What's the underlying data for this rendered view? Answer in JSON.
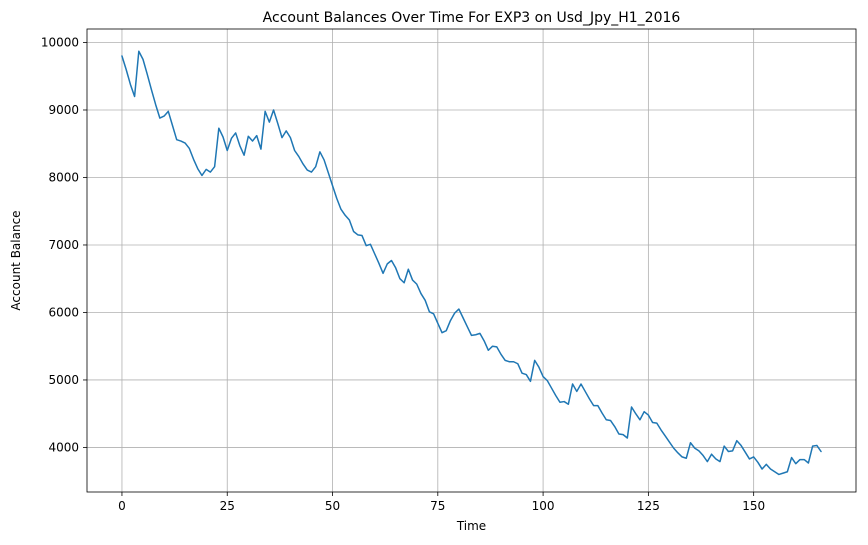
{
  "chart_data": {
    "type": "line",
    "title": "Account Balances Over Time For EXP3 on Usd_Jpy_H1_2016",
    "xlabel": "Time",
    "ylabel": "Account Balance",
    "xlim": [
      -8.3,
      174.3
    ],
    "ylim": [
      3340,
      10200
    ],
    "xticks": [
      0,
      25,
      50,
      75,
      100,
      125,
      150
    ],
    "yticks": [
      4000,
      5000,
      6000,
      7000,
      8000,
      9000,
      10000
    ],
    "grid": true,
    "series": [
      {
        "color": "#1f77b4",
        "x": [
          0,
          1,
          2,
          3,
          4,
          5,
          6,
          7,
          8,
          9,
          10,
          11,
          12,
          13,
          14,
          15,
          16,
          17,
          18,
          19,
          20,
          21,
          22,
          23,
          24,
          25,
          26,
          27,
          28,
          29,
          30,
          31,
          32,
          33,
          34,
          35,
          36,
          37,
          38,
          39,
          40,
          41,
          42,
          43,
          44,
          45,
          46,
          47,
          48,
          49,
          50,
          51,
          52,
          53,
          54,
          55,
          56,
          57,
          58,
          59,
          60,
          61,
          62,
          63,
          64,
          65,
          66,
          67,
          68,
          69,
          70,
          71,
          72,
          73,
          74,
          75,
          76,
          77,
          78,
          79,
          80,
          81,
          82,
          83,
          84,
          85,
          86,
          87,
          88,
          89,
          90,
          91,
          92,
          93,
          94,
          95,
          96,
          97,
          98,
          99,
          100,
          101,
          102,
          103,
          104,
          105,
          106,
          107,
          108,
          109,
          110,
          111,
          112,
          113,
          114,
          115,
          116,
          117,
          118,
          119,
          120,
          121,
          122,
          123,
          124,
          125,
          126,
          127,
          128,
          129,
          130,
          131,
          132,
          133,
          134,
          135,
          136,
          137,
          138,
          139,
          140,
          141,
          142,
          143,
          144,
          145,
          146,
          147,
          148,
          149,
          150,
          151,
          152,
          153,
          154,
          155,
          156,
          157,
          158,
          159,
          160,
          161,
          162,
          163,
          164,
          165,
          166
        ],
        "y": [
          9800,
          9600,
          9380,
          9200,
          9870,
          9750,
          9530,
          9300,
          9080,
          8880,
          8910,
          8980,
          8770,
          8560,
          8540,
          8510,
          8430,
          8270,
          8130,
          8030,
          8120,
          8080,
          8160,
          8730,
          8600,
          8400,
          8580,
          8660,
          8470,
          8330,
          8610,
          8540,
          8620,
          8420,
          8980,
          8820,
          9000,
          8800,
          8590,
          8690,
          8590,
          8400,
          8310,
          8200,
          8110,
          8080,
          8160,
          8380,
          8260,
          8070,
          7880,
          7690,
          7530,
          7440,
          7370,
          7200,
          7150,
          7140,
          6990,
          7010,
          6870,
          6730,
          6580,
          6720,
          6770,
          6660,
          6500,
          6440,
          6640,
          6480,
          6420,
          6280,
          6180,
          6010,
          5980,
          5840,
          5700,
          5730,
          5880,
          5990,
          6050,
          5920,
          5790,
          5660,
          5670,
          5690,
          5580,
          5440,
          5500,
          5490,
          5380,
          5290,
          5270,
          5270,
          5240,
          5100,
          5080,
          4980,
          5290,
          5190,
          5050,
          4990,
          4880,
          4770,
          4670,
          4680,
          4640,
          4940,
          4830,
          4940,
          4830,
          4720,
          4620,
          4620,
          4510,
          4410,
          4400,
          4310,
          4200,
          4190,
          4140,
          4600,
          4500,
          4410,
          4530,
          4480,
          4370,
          4360,
          4260,
          4170,
          4080,
          3990,
          3920,
          3860,
          3840,
          4070,
          3990,
          3950,
          3880,
          3790,
          3900,
          3830,
          3790,
          4020,
          3940,
          3950,
          4100,
          4030,
          3930,
          3830,
          3860,
          3780,
          3680,
          3750,
          3680,
          3640,
          3600,
          3620,
          3640,
          3850,
          3760,
          3820,
          3820,
          3770,
          4020,
          4030,
          3940
        ]
      }
    ]
  }
}
